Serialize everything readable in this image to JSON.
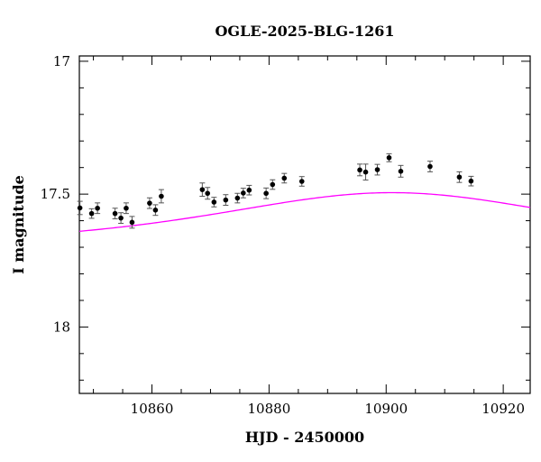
{
  "chart_data": {
    "type": "scatter",
    "title": "OGLE-2025-BLG-1261",
    "xlabel": "HJD - 2450000",
    "ylabel": "I magnitude",
    "xlim": [
      10847.6,
      10924.6
    ],
    "ylim": [
      18.25,
      16.98
    ],
    "y_inverted": true,
    "grid": false,
    "x_major_ticks": [
      10860,
      10880,
      10900,
      10920
    ],
    "x_minor_step": 5,
    "y_major_ticks": [
      17,
      17.5,
      18
    ],
    "y_major_tick_labels": [
      "17",
      "17.5",
      "18"
    ],
    "y_minor_step": 0.1,
    "model_color": "#ff00ff",
    "point_color": "#000000",
    "errorbar_color": "#555555",
    "model": {
      "t0": 10901,
      "u0": 1.25,
      "tE": 33,
      "baseline_mag": 17.7
    },
    "series": [
      {
        "x": [
          10847.7,
          10849.7,
          10850.7,
          10853.7,
          10854.7,
          10855.6,
          10856.6,
          10859.6,
          10860.6,
          10861.6,
          10868.6,
          10869.5,
          10870.6,
          10872.6,
          10874.6,
          10875.6,
          10876.6,
          10879.5,
          10880.6,
          10882.6,
          10885.6,
          10895.5,
          10896.5,
          10898.5,
          10900.5,
          10902.5,
          10907.5,
          10912.5,
          10914.5
        ],
        "y": [
          17.552,
          17.573,
          17.553,
          17.573,
          17.59,
          17.553,
          17.606,
          17.534,
          17.56,
          17.508,
          17.483,
          17.497,
          17.53,
          17.522,
          17.515,
          17.496,
          17.485,
          17.497,
          17.464,
          17.44,
          17.452,
          17.409,
          17.417,
          17.408,
          17.363,
          17.414,
          17.396,
          17.436,
          17.451
        ],
        "yerr": [
          0.025,
          0.018,
          0.02,
          0.02,
          0.02,
          0.02,
          0.022,
          0.02,
          0.02,
          0.025,
          0.025,
          0.022,
          0.018,
          0.02,
          0.018,
          0.018,
          0.018,
          0.02,
          0.018,
          0.018,
          0.018,
          0.022,
          0.03,
          0.02,
          0.015,
          0.022,
          0.02,
          0.02,
          0.018
        ]
      }
    ]
  }
}
